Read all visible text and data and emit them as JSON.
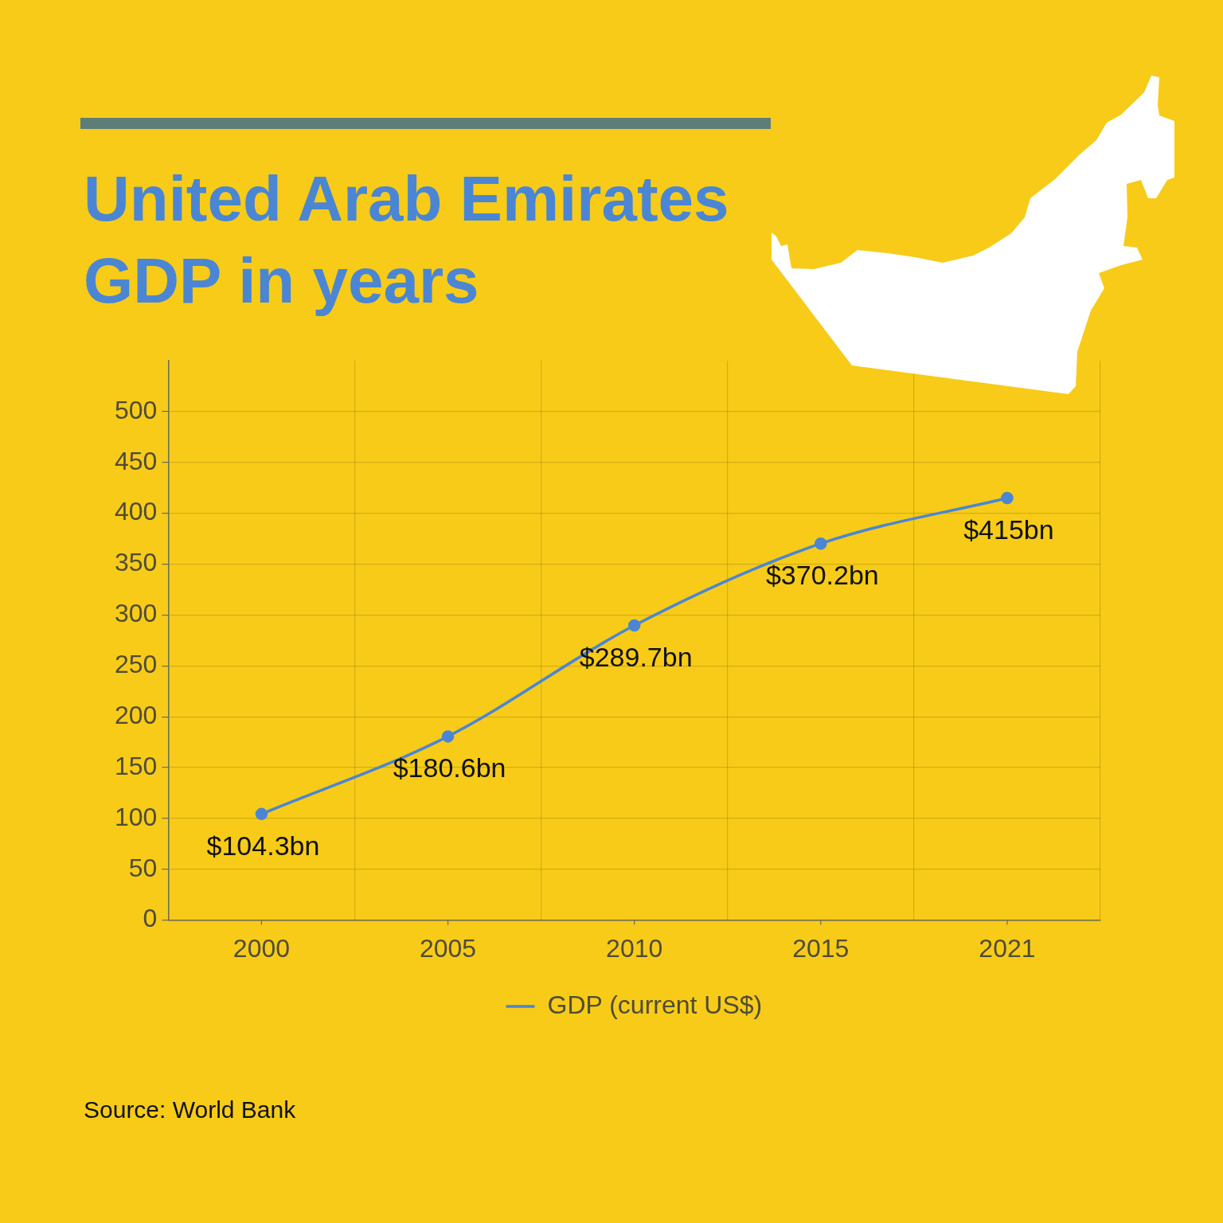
{
  "chart_data": {
    "type": "line",
    "title": "United Arab Emirates GDP in years",
    "categories": [
      "2000",
      "2005",
      "2010",
      "2015",
      "2021"
    ],
    "series": [
      {
        "name": "GDP (current US$)",
        "color": "#4a86d4",
        "values": [
          104.3,
          180.6,
          289.7,
          370.2,
          415
        ],
        "value_labels": [
          "$104.3bn",
          "$180.6bn",
          "$289.7bn",
          "$370.2bn",
          "$415bn"
        ]
      }
    ],
    "ylim": [
      0,
      550
    ],
    "yticks": [
      0,
      50,
      100,
      150,
      200,
      250,
      300,
      350,
      400,
      450,
      500
    ],
    "grid": true,
    "legend": "bottom",
    "marker": "circle",
    "annotations": [
      "Source: World Bank"
    ]
  }
}
